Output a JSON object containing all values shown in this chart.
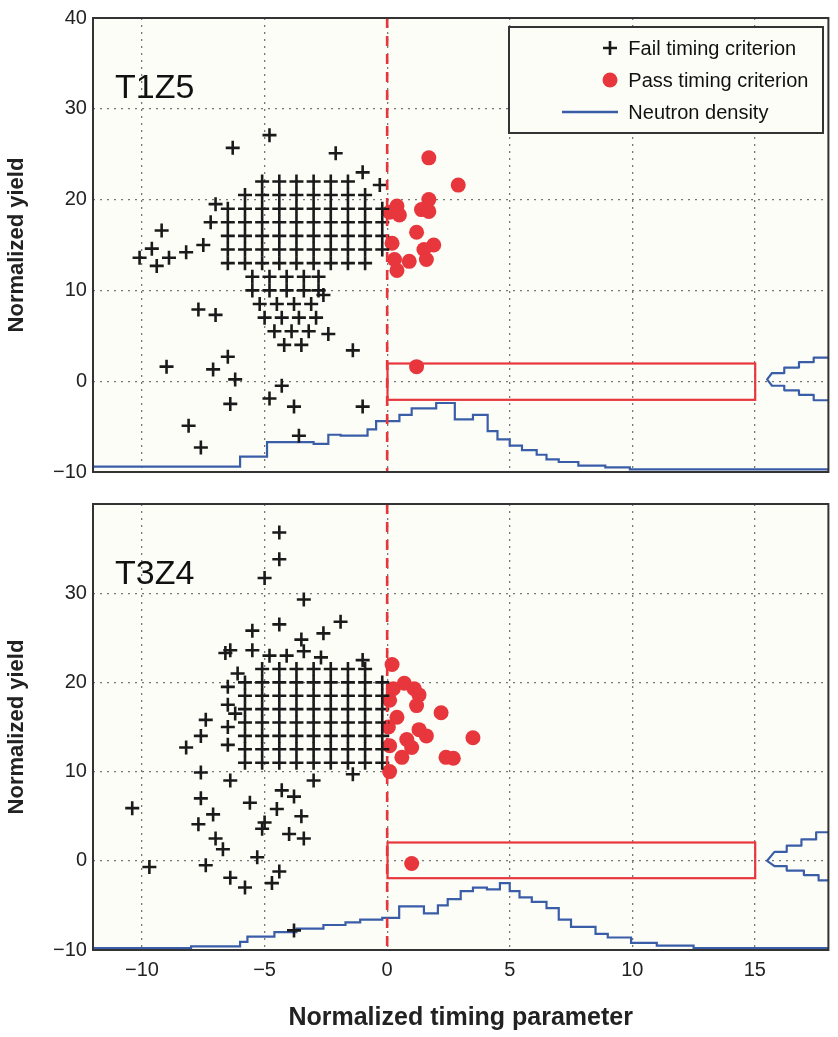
{
  "chart_data": [
    {
      "type": "scatter",
      "ylabel": "Normalized yield",
      "annotations": [
        "T1Z5"
      ],
      "legend": "top right",
      "grid": true,
      "tick_labels": "y",
      "xlim": [
        -12,
        18
      ],
      "xticks": [
        -10,
        -5,
        0,
        5,
        10,
        15
      ],
      "ylim": [
        -10,
        40
      ],
      "yticks": [
        {
          "value": -10,
          "label": "−10"
        },
        0,
        10,
        20,
        30,
        40
      ],
      "ref_lines": [
        {
          "axis": "x",
          "value": 0,
          "color": "#e8363d",
          "line_style": "dashed"
        }
      ],
      "series": [
        {
          "name": "Fail timing criterion",
          "type": "scatter",
          "marker": "cross",
          "color": "#1a1a1a",
          "x": [
            -5.1,
            -4.4,
            -3.7,
            -3.0,
            -2.3,
            -1.6,
            -5.8,
            -5.1,
            -4.4,
            -3.7,
            -3.0,
            -2.3,
            -1.6,
            -0.9,
            -6.5,
            -5.8,
            -5.1,
            -4.4,
            -3.7,
            -3.0,
            -2.3,
            -1.6,
            -0.9,
            -0.2,
            -6.5,
            -5.8,
            -5.1,
            -4.4,
            -3.7,
            -3.0,
            -2.3,
            -1.6,
            -0.9,
            -0.2,
            -6.5,
            -5.8,
            -5.1,
            -4.4,
            -3.7,
            -3.0,
            -2.3,
            -1.6,
            -0.9,
            -0.2,
            -6.5,
            -5.8,
            -5.1,
            -4.4,
            -3.7,
            -3.0,
            -2.3,
            -1.6,
            -0.9,
            -0.2,
            -6.5,
            -5.8,
            -5.1,
            -4.4,
            -3.7,
            -3.0,
            -2.3,
            -1.6,
            -0.9,
            -5.5,
            -4.8,
            -4.1,
            -3.4,
            -2.8,
            -5.5,
            -4.8,
            -4.1,
            -3.4,
            -2.8,
            -5.2,
            -4.5,
            -3.8,
            -3.1,
            -5.0,
            -4.3,
            -3.6,
            -2.9,
            -4.6,
            -3.9,
            -3.2,
            -4.2,
            -3.5,
            -7.5,
            -8.2,
            -7.2,
            -7.0,
            -4.8,
            -6.3,
            -2.1,
            -1.0,
            -0.3,
            -9.2,
            -9.6,
            -10.1,
            -9.4,
            -8.9,
            -7.7,
            -7.0,
            -2.6,
            -1.4,
            -9.0,
            -7.1,
            -6.2,
            -6.4,
            -4.8,
            -3.8,
            -1.0,
            -4.3,
            -8.1,
            -7.6,
            -3.6,
            -2.4,
            -6.5
          ],
          "values": [
            22,
            22,
            22,
            22,
            22,
            22,
            20.5,
            20.5,
            20.5,
            20.5,
            20.5,
            20.5,
            20.5,
            20.5,
            19,
            19,
            19,
            19,
            19,
            19,
            19,
            19,
            19,
            19,
            17.5,
            17.5,
            17.5,
            17.5,
            17.5,
            17.5,
            17.5,
            17.5,
            17.5,
            17.5,
            16,
            16,
            16,
            16,
            16,
            16,
            16,
            16,
            16,
            16,
            14.5,
            14.5,
            14.5,
            14.5,
            14.5,
            14.5,
            14.5,
            14.5,
            14.5,
            14.5,
            13,
            13,
            13,
            13,
            13,
            13,
            13,
            13,
            13,
            11.5,
            11.5,
            11.5,
            11.5,
            11.5,
            10,
            10,
            10,
            10,
            10,
            8.5,
            8.5,
            8.5,
            8.5,
            7,
            7,
            7,
            7,
            5.5,
            5.5,
            5.5,
            4,
            4,
            15,
            14.2,
            17.5,
            19.5,
            27.1,
            25.7,
            25.1,
            23.0,
            21.6,
            16.6,
            14.6,
            13.6,
            12.7,
            13.6,
            7.9,
            7.3,
            9.5,
            3.4,
            1.6,
            1.3,
            0.2,
            -2.5,
            -1.9,
            -2.8,
            -2.8,
            -0.5,
            -4.9,
            -7.3,
            -6.0,
            5.2,
            2.7
          ]
        },
        {
          "name": "Pass timing criterion",
          "type": "scatter",
          "marker": "circle",
          "color": "#e8363d",
          "x": [
            1.7,
            2.9,
            1.7,
            1.4,
            1.7,
            0.4,
            0.1,
            0.5,
            1.2,
            1.9,
            0.2,
            1.5,
            0.9,
            1.6,
            0.3,
            0.4,
            1.2
          ],
          "values": [
            24.6,
            21.6,
            20.0,
            18.9,
            18.7,
            19.3,
            18.6,
            18.3,
            16.4,
            15.0,
            15.2,
            14.5,
            13.2,
            13.4,
            13.4,
            12.2,
            1.6
          ]
        },
        {
          "name": "Neutron density",
          "type": "step",
          "marker": "none",
          "color": "#3a5da8",
          "x": [
            -12,
            -6.0,
            -4.9,
            -3.0,
            -2.4,
            -1.9,
            -0.8,
            -0.45,
            0.5,
            1.0,
            2.0,
            2.76,
            3.5,
            4.1,
            4.5,
            5.0,
            5.5,
            6.1,
            6.5,
            7.0,
            7.8,
            8.9,
            9.9,
            11.5,
            18
          ],
          "values": [
            -9.8,
            -9.4,
            -8.3,
            -6.7,
            -6.9,
            -5.9,
            -6.0,
            -5.3,
            -4.4,
            -3.7,
            -3.0,
            -2.4,
            -4.2,
            -3.7,
            -5.5,
            -6.4,
            -7.1,
            -7.6,
            -8.1,
            -8.6,
            -8.9,
            -9.3,
            -9.5,
            -9.7,
            -9.7
          ]
        },
        {
          "type": "line",
          "marker": "none",
          "color": "#3a5da8",
          "x": [
            18,
            17.4,
            17.4,
            16.8,
            16.8,
            16.2,
            16.2,
            15.7,
            15.5,
            15.7,
            16.2,
            16.2,
            16.8,
            16.8,
            17.4,
            17.4,
            18
          ],
          "values": [
            2.6,
            2.6,
            2.1,
            2.1,
            1.5,
            1.5,
            0.9,
            0.9,
            0.2,
            -0.5,
            -0.5,
            -1.0,
            -1.0,
            -1.5,
            -1.5,
            -2.1,
            -2.1
          ]
        }
      ]
    },
    {
      "type": "scatter",
      "ylabel": "Normalized yield",
      "xlabel": "Normalized timing parameter",
      "annotations": [
        "T3Z4"
      ],
      "grid": true,
      "xlim": [
        -12,
        18
      ],
      "xticks": [
        {
          "value": -10,
          "label": "−10"
        },
        {
          "value": -5,
          "label": "−5"
        },
        0,
        5,
        10,
        15
      ],
      "ylim": [
        -10,
        40
      ],
      "yticks": [
        {
          "value": -10,
          "label": "−10"
        },
        0,
        10,
        20,
        30
      ],
      "ref_lines": [
        {
          "axis": "x",
          "value": 0,
          "color": "#e8363d",
          "line_style": "dashed"
        }
      ],
      "series": [
        {
          "type": "scatter",
          "marker": "cross",
          "color": "#1a1a1a",
          "x": [
            -5.1,
            -4.4,
            -3.7,
            -3.0,
            -2.3,
            -1.6,
            -0.9,
            -5.8,
            -5.1,
            -4.4,
            -3.7,
            -3.0,
            -2.3,
            -1.6,
            -0.9,
            -0.2,
            -5.8,
            -5.1,
            -4.4,
            -3.7,
            -3.0,
            -2.3,
            -1.6,
            -0.9,
            -0.2,
            -5.8,
            -5.1,
            -4.4,
            -3.7,
            -3.0,
            -2.3,
            -1.6,
            -0.9,
            -0.2,
            -5.8,
            -5.1,
            -4.4,
            -3.7,
            -3.0,
            -2.3,
            -1.6,
            -0.9,
            -0.2,
            -5.8,
            -5.1,
            -4.4,
            -3.7,
            -3.0,
            -2.3,
            -1.6,
            -0.9,
            -0.2,
            -5.8,
            -5.1,
            -4.4,
            -3.7,
            -3.0,
            -2.3,
            -1.6,
            -0.9,
            -0.2,
            -5.8,
            -5.1,
            -4.4,
            -3.7,
            -3.0,
            -2.3,
            -1.6,
            -0.9,
            -0.2,
            -6.5,
            -6.5,
            -6.5,
            -6.5,
            -6.1,
            -4.8,
            -4.1,
            -3.4,
            -2.7,
            -3.5,
            -2.6,
            -4.4,
            -4.4,
            -5.0,
            -3.4,
            -1.9,
            -4.4,
            -5.5,
            -6.4,
            -6.6,
            -1.0,
            -7.4,
            -8.2,
            -7.6,
            -7.6,
            -7.6,
            -7.1,
            -7.7,
            -7.0,
            -6.7,
            -10.4,
            -9.7,
            -7.4,
            -6.4,
            -5.8,
            -5.3,
            -4.7,
            -4.4,
            -3.8,
            -3.4,
            -4.0,
            -6.4,
            -5.6,
            -5.0,
            -3.8,
            -3.5,
            -3.0,
            -4.3,
            -5.1,
            -4.5,
            -1.4,
            -6.2,
            -5.5
          ],
          "values": [
            21.5,
            21.5,
            21.5,
            21.5,
            21.5,
            21.5,
            21.5,
            20,
            20,
            20,
            20,
            20,
            20,
            20,
            20,
            20,
            18.5,
            18.5,
            18.5,
            18.5,
            18.5,
            18.5,
            18.5,
            18.5,
            18.5,
            17,
            17,
            17,
            17,
            17,
            17,
            17,
            17,
            17,
            15.5,
            15.5,
            15.5,
            15.5,
            15.5,
            15.5,
            15.5,
            15.5,
            15.5,
            14,
            14,
            14,
            14,
            14,
            14,
            14,
            14,
            14,
            12.5,
            12.5,
            12.5,
            12.5,
            12.5,
            12.5,
            12.5,
            12.5,
            12.5,
            11,
            11,
            11,
            11,
            11,
            11,
            11,
            11,
            11,
            13,
            15,
            17.5,
            19.5,
            21,
            23,
            23,
            23.5,
            22.8,
            24.8,
            25.5,
            36.8,
            33.8,
            31.7,
            29.3,
            26.8,
            26.5,
            25.8,
            23.6,
            23.3,
            22.5,
            15.8,
            12.7,
            14.0,
            9.9,
            7.0,
            5.2,
            4.1,
            2.5,
            1.3,
            5.9,
            -0.7,
            -0.5,
            -1.9,
            -3.0,
            0.4,
            -2.5,
            -1.2,
            -7.8,
            2.5,
            3.0,
            9.0,
            6.5,
            4.3,
            7.2,
            5.0,
            9.0,
            7.9,
            3.6,
            5.8,
            9.7,
            16.5,
            23.6
          ]
        },
        {
          "type": "scatter",
          "marker": "circle",
          "color": "#e8363d",
          "x": [
            0.2,
            0.7,
            1.1,
            1.3,
            0.25,
            1.2,
            0.1,
            2.2,
            0.4,
            0.05,
            1.3,
            1.6,
            3.5,
            0.8,
            0.1,
            1.0,
            0.6,
            2.4,
            2.7,
            0.1,
            1.0
          ],
          "values": [
            22.0,
            19.9,
            19.3,
            18.6,
            19.3,
            17.4,
            18.0,
            16.6,
            16.1,
            15.0,
            14.7,
            14.0,
            13.8,
            13.6,
            12.9,
            12.7,
            11.6,
            11.6,
            11.5,
            10.0,
            -0.3
          ]
        },
        {
          "type": "step",
          "marker": "none",
          "color": "#3a5da8",
          "x": [
            -12,
            -8,
            -6,
            -5.7,
            -4.6,
            -3.7,
            -2.6,
            -1.7,
            -1.1,
            -0.2,
            0.49,
            1.5,
            2.07,
            2.47,
            3.0,
            3.5,
            4.07,
            4.6,
            5.0,
            5.4,
            5.9,
            6.5,
            7.0,
            7.5,
            8.5,
            9.0,
            9.95,
            11,
            12.5,
            13.5,
            18
          ],
          "values": [
            -9.9,
            -9.8,
            -9.6,
            -9.1,
            -8.5,
            -8.0,
            -7.6,
            -7.2,
            -6.9,
            -6.6,
            -6.4,
            -5.1,
            -5.9,
            -5.0,
            -4.3,
            -3.4,
            -3.0,
            -3.2,
            -2.5,
            -3.4,
            -4.1,
            -4.6,
            -5.3,
            -6.6,
            -7.4,
            -8.2,
            -8.6,
            -9.2,
            -9.5,
            -9.8,
            -9.8
          ]
        },
        {
          "type": "line",
          "marker": "none",
          "color": "#3a5da8",
          "x": [
            18,
            17.5,
            17.5,
            16.9,
            16.9,
            16.3,
            16.3,
            15.8,
            15.5,
            15.8,
            16.3,
            16.3,
            17.0,
            17.0,
            17.6,
            17.6,
            18
          ],
          "values": [
            3.2,
            3.2,
            2.4,
            2.4,
            1.7,
            1.7,
            1.0,
            1.0,
            0,
            -0.6,
            -0.6,
            -1.1,
            -1.1,
            -1.6,
            -1.6,
            -2.2,
            -2.2
          ]
        }
      ]
    }
  ]
}
